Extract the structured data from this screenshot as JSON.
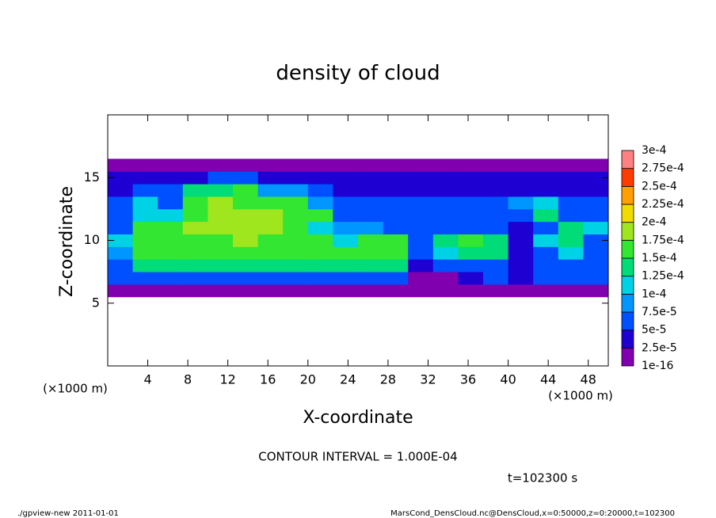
{
  "chart_data": {
    "type": "heatmap",
    "title": "density of cloud",
    "x_label": "X-coordinate",
    "y_label": "Z-coordinate",
    "x_unit": "(×1000 m)",
    "y_unit": "(×1000 m)",
    "annotation": "CONTOUR INTERVAL = 1.000E-04",
    "time_label": "t=102300 s",
    "footer_left": "./gpview-new  2011-01-01",
    "footer_right": "MarsCond_DensCloud.nc@DensCloud,x=0:50000,z=0:20000,t=102300",
    "xlim": [
      0,
      50
    ],
    "ylim": [
      0,
      20
    ],
    "xticks": [
      4,
      8,
      12,
      16,
      20,
      24,
      28,
      32,
      36,
      40,
      44,
      48
    ],
    "yticks": [
      5,
      10,
      15
    ],
    "x_edges": [
      0,
      2.5,
      5,
      7.5,
      10,
      12.5,
      15,
      17.5,
      20,
      22.5,
      25,
      27.5,
      30,
      32.5,
      35,
      37.5,
      40,
      42.5,
      45,
      47.5,
      50
    ],
    "y_edges": [
      5.5,
      6.5,
      7.5,
      8.5,
      9.5,
      10.5,
      11.5,
      12.5,
      13.5,
      14.5,
      15.5,
      16.5
    ],
    "levels": [
      {
        "value": 1e-16,
        "label": "1e-16"
      },
      {
        "value": 2.5e-05,
        "label": "2.5e-5"
      },
      {
        "value": 5e-05,
        "label": "5e-5"
      },
      {
        "value": 7.5e-05,
        "label": "7.5e-5"
      },
      {
        "value": 0.0001,
        "label": "1e-4"
      },
      {
        "value": 0.000125,
        "label": "1.25e-4"
      },
      {
        "value": 0.00015,
        "label": "1.5e-4"
      },
      {
        "value": 0.000175,
        "label": "1.75e-4"
      },
      {
        "value": 0.0002,
        "label": "2e-4"
      },
      {
        "value": 0.000225,
        "label": "2.25e-4"
      },
      {
        "value": 0.00025,
        "label": "2.5e-4"
      },
      {
        "value": 0.000275,
        "label": "2.75e-4"
      },
      {
        "value": 0.0003,
        "label": "3e-4"
      }
    ],
    "colors": [
      "#8000b0",
      "#1e00d2",
      "#0050ff",
      "#0096ff",
      "#00d2e6",
      "#00dc78",
      "#32e632",
      "#a0e61e",
      "#f0dc00",
      "#ffa000",
      "#ff3c00",
      "#ff8080"
    ],
    "values": [
      [
        1e-05,
        1e-05,
        1e-05,
        1e-05,
        1e-05,
        1e-05,
        1e-05,
        1e-05,
        1e-05,
        1e-05,
        1e-05,
        1e-05,
        1e-05,
        1e-05,
        1e-05,
        1e-05,
        1e-05,
        1e-05,
        1e-05,
        1e-05
      ],
      [
        6e-05,
        6e-05,
        6e-05,
        6e-05,
        6e-05,
        6e-05,
        6e-05,
        6e-05,
        6e-05,
        6e-05,
        6e-05,
        6e-05,
        1e-05,
        1e-05,
        4e-05,
        6e-05,
        4e-05,
        6e-05,
        6e-05,
        6e-05
      ],
      [
        6e-05,
        0.000135,
        0.000135,
        0.000135,
        0.000135,
        0.000135,
        0.000135,
        0.000135,
        0.000135,
        0.000135,
        0.000135,
        0.000135,
        4e-05,
        6e-05,
        6e-05,
        6e-05,
        4e-05,
        6e-05,
        6e-05,
        6e-05
      ],
      [
        8.5e-05,
        0.00016,
        0.00016,
        0.00016,
        0.00016,
        0.00016,
        0.00016,
        0.00016,
        0.00016,
        0.00016,
        0.00016,
        0.00016,
        6e-05,
        0.00011,
        0.000135,
        0.000135,
        4e-05,
        6e-05,
        0.00011,
        6e-05
      ],
      [
        0.00011,
        0.00016,
        0.00016,
        0.00016,
        0.00016,
        0.000185,
        0.00016,
        0.00016,
        0.00016,
        0.00011,
        0.00016,
        0.00016,
        6e-05,
        0.000135,
        0.00016,
        0.000135,
        4e-05,
        0.00011,
        0.000135,
        6e-05
      ],
      [
        6e-05,
        0.00016,
        0.00016,
        0.000185,
        0.000185,
        0.000185,
        0.000185,
        0.00016,
        0.00011,
        8.5e-05,
        8.5e-05,
        6e-05,
        6e-05,
        6e-05,
        6e-05,
        6e-05,
        4e-05,
        6e-05,
        0.000135,
        0.00011
      ],
      [
        6e-05,
        0.00011,
        0.00011,
        0.00016,
        0.000185,
        0.000185,
        0.000185,
        0.00016,
        0.00016,
        6e-05,
        6e-05,
        6e-05,
        6e-05,
        6e-05,
        6e-05,
        6e-05,
        6e-05,
        0.000135,
        6e-05,
        6e-05
      ],
      [
        6e-05,
        0.00011,
        6e-05,
        0.00016,
        0.000185,
        0.00016,
        0.00016,
        0.00016,
        8.5e-05,
        6e-05,
        6e-05,
        6e-05,
        6e-05,
        6e-05,
        6e-05,
        6e-05,
        8.5e-05,
        0.00011,
        6e-05,
        6e-05
      ],
      [
        4e-05,
        6e-05,
        6e-05,
        0.000135,
        0.000135,
        0.00016,
        8.5e-05,
        8.5e-05,
        6e-05,
        4e-05,
        4e-05,
        4e-05,
        4e-05,
        4e-05,
        4e-05,
        4e-05,
        4e-05,
        4e-05,
        4e-05,
        4e-05
      ],
      [
        4e-05,
        4e-05,
        4e-05,
        4e-05,
        6e-05,
        6e-05,
        4e-05,
        4e-05,
        4e-05,
        4e-05,
        4e-05,
        4e-05,
        4e-05,
        4e-05,
        4e-05,
        4e-05,
        4e-05,
        4e-05,
        4e-05,
        4e-05
      ],
      [
        1e-05,
        1e-05,
        1e-05,
        1e-05,
        1e-05,
        1e-05,
        1e-05,
        1e-05,
        1e-05,
        1e-05,
        1e-05,
        1e-05,
        1e-05,
        1e-05,
        1e-05,
        1e-05,
        1e-05,
        1e-05,
        1e-05,
        1e-05
      ]
    ]
  }
}
